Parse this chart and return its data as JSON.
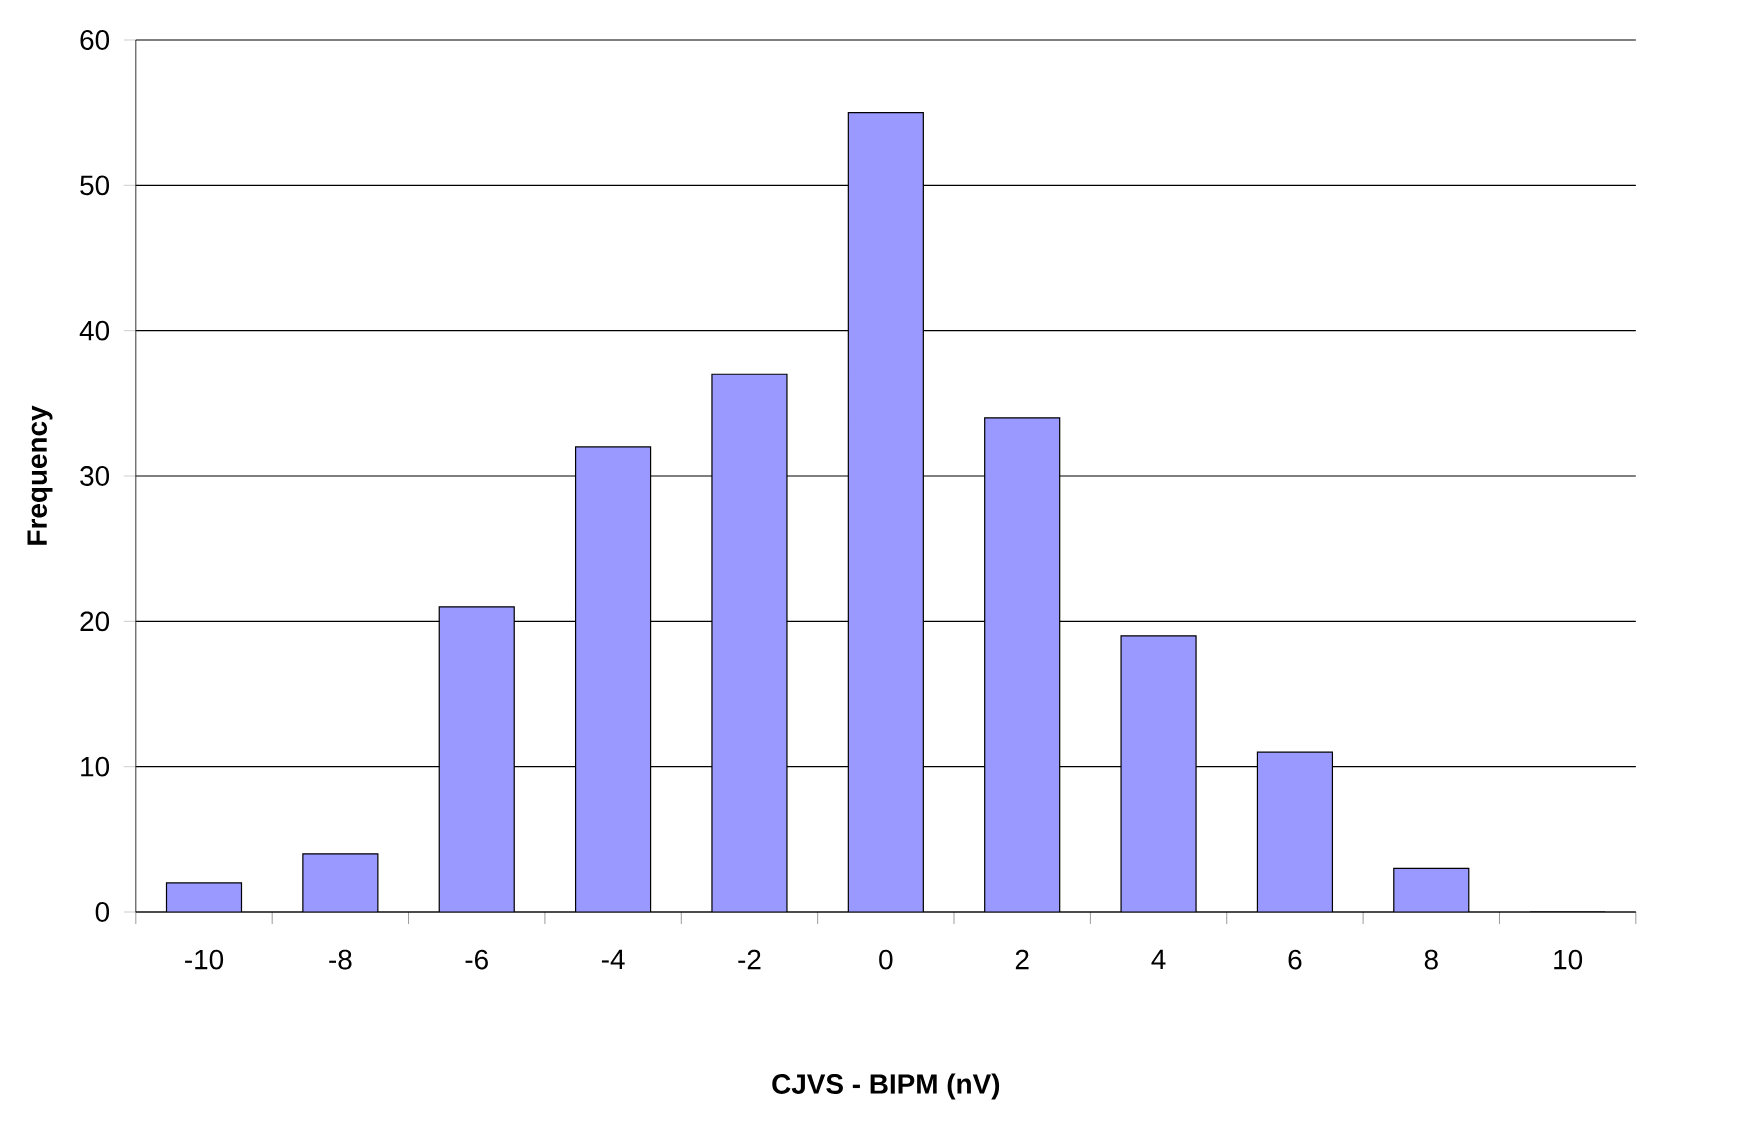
{
  "chart_data": {
    "type": "bar",
    "xlabel": "CJVS - BIPM (nV)",
    "ylabel": "Frequency",
    "categories": [
      "-10",
      "-8",
      "-6",
      "-4",
      "-2",
      "0",
      "2",
      "4",
      "6",
      "8",
      "10"
    ],
    "values": [
      2,
      4,
      21,
      32,
      37,
      55,
      34,
      19,
      11,
      3,
      0
    ],
    "color": "#9999ff",
    "ylim": [
      0,
      60
    ],
    "yticks": [
      0,
      10,
      20,
      30,
      40,
      50,
      60
    ],
    "grid": "y"
  }
}
